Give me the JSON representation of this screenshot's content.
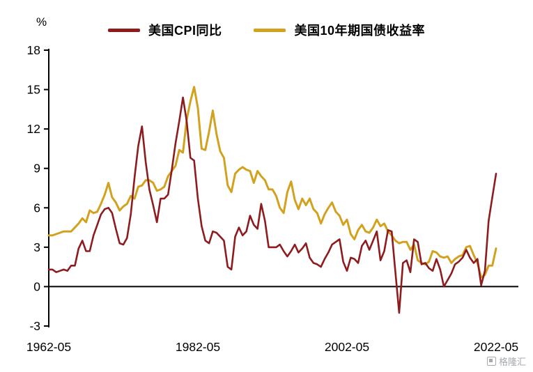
{
  "chart_data": {
    "type": "line",
    "title": "",
    "ylabel": "%",
    "ylim": [
      -3,
      18
    ],
    "yticks": [
      18,
      15,
      12,
      9,
      6,
      3,
      0,
      -3
    ],
    "x_start": "1962-05",
    "x_end": "2022-05",
    "x_tick_labels": [
      "1962-05",
      "1982-05",
      "2002-05",
      "2022-05"
    ],
    "points_per_year": 2,
    "grid": false,
    "legend_position": "top",
    "series": [
      {
        "name": "美国CPI同比",
        "color": "#8E1B1E",
        "width": 2.6,
        "values": [
          1.3,
          1.3,
          1.1,
          1.2,
          1.3,
          1.2,
          1.6,
          1.6,
          2.9,
          3.5,
          2.7,
          2.7,
          3.9,
          4.7,
          5.5,
          5.9,
          6.0,
          5.6,
          4.4,
          3.3,
          3.2,
          3.7,
          5.5,
          8.3,
          10.7,
          12.2,
          9.5,
          7.4,
          6.2,
          4.9,
          6.7,
          6.7,
          7.0,
          8.9,
          10.9,
          12.6,
          14.4,
          12.6,
          9.8,
          9.6,
          6.7,
          4.6,
          3.5,
          3.3,
          4.2,
          4.1,
          3.8,
          3.5,
          1.5,
          1.3,
          3.8,
          4.5,
          3.9,
          4.2,
          5.4,
          4.7,
          4.4,
          6.3,
          5.0,
          3.0,
          3.0,
          3.0,
          3.2,
          2.7,
          2.3,
          2.7,
          3.2,
          2.6,
          2.9,
          3.3,
          2.2,
          1.8,
          1.7,
          1.5,
          2.1,
          2.6,
          3.2,
          3.4,
          3.6,
          1.9,
          1.2,
          2.2,
          2.1,
          1.8,
          3.1,
          3.5,
          2.8,
          3.5,
          4.2,
          2.0,
          2.7,
          4.3,
          4.2,
          1.1,
          -2.0,
          1.8,
          2.0,
          1.1,
          3.6,
          3.4,
          1.7,
          1.8,
          1.4,
          1.2,
          2.1,
          1.3,
          0.0,
          0.5,
          1.0,
          1.7,
          1.9,
          2.2,
          2.8,
          2.2,
          1.8,
          2.1,
          0.1,
          1.2,
          5.0,
          6.8,
          8.6
        ]
      },
      {
        "name": "美国10年期国债收益率",
        "color": "#D2A21F",
        "width": 3,
        "values": [
          3.9,
          3.9,
          4.0,
          4.1,
          4.2,
          4.2,
          4.2,
          4.5,
          4.8,
          5.2,
          4.9,
          5.8,
          5.6,
          5.7,
          6.3,
          7.0,
          7.9,
          6.8,
          6.4,
          5.8,
          6.1,
          6.3,
          6.9,
          6.7,
          7.6,
          7.7,
          8.1,
          8.1,
          7.9,
          7.3,
          7.4,
          7.6,
          8.4,
          8.8,
          9.2,
          10.4,
          10.2,
          12.7,
          14.1,
          15.2,
          13.6,
          10.5,
          10.4,
          11.8,
          13.4,
          11.6,
          10.3,
          9.8,
          7.7,
          7.2,
          8.6,
          8.9,
          9.1,
          8.9,
          8.8,
          7.9,
          8.8,
          8.4,
          8.1,
          7.4,
          7.4,
          6.9,
          6.0,
          5.6,
          7.2,
          8.0,
          6.6,
          5.9,
          6.7,
          6.2,
          6.7,
          5.9,
          5.6,
          4.8,
          5.5,
          6.0,
          6.4,
          5.7,
          5.4,
          4.7,
          5.1,
          4.0,
          3.6,
          4.3,
          4.7,
          4.2,
          4.1,
          4.5,
          5.1,
          4.6,
          4.8,
          4.2,
          3.9,
          3.5,
          3.3,
          3.4,
          3.4,
          2.8,
          3.2,
          2.0,
          1.8,
          1.7,
          1.9,
          2.7,
          2.6,
          2.3,
          2.2,
          2.3,
          1.8,
          2.1,
          2.3,
          2.4,
          3.0,
          3.1,
          2.4,
          1.8,
          0.7,
          0.9,
          1.6,
          1.6,
          2.9
        ]
      }
    ]
  },
  "watermark": {
    "text": "格隆汇"
  }
}
